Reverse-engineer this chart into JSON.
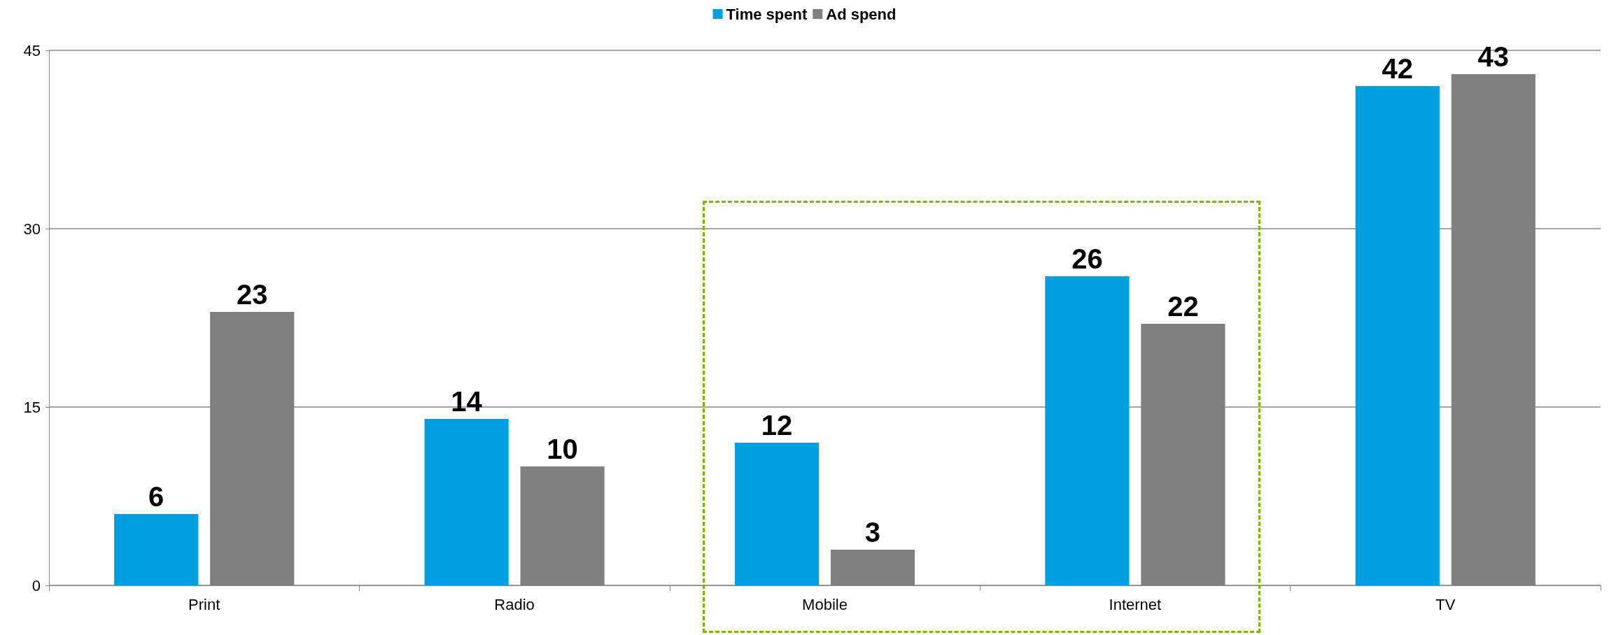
{
  "chart_data": {
    "type": "bar",
    "categories": [
      "Print",
      "Radio",
      "Mobile",
      "Internet",
      "TV"
    ],
    "series": [
      {
        "name": "Time spent",
        "color": "#009fdf",
        "values": [
          6,
          14,
          12,
          26,
          42
        ]
      },
      {
        "name": "Ad spend",
        "color": "#808080",
        "values": [
          23,
          10,
          3,
          22,
          43
        ]
      }
    ],
    "ylim": [
      0,
      45
    ],
    "yticks": [
      0,
      15,
      30,
      45
    ],
    "grid": "y",
    "legend": "top",
    "data_labels": true
  }
}
